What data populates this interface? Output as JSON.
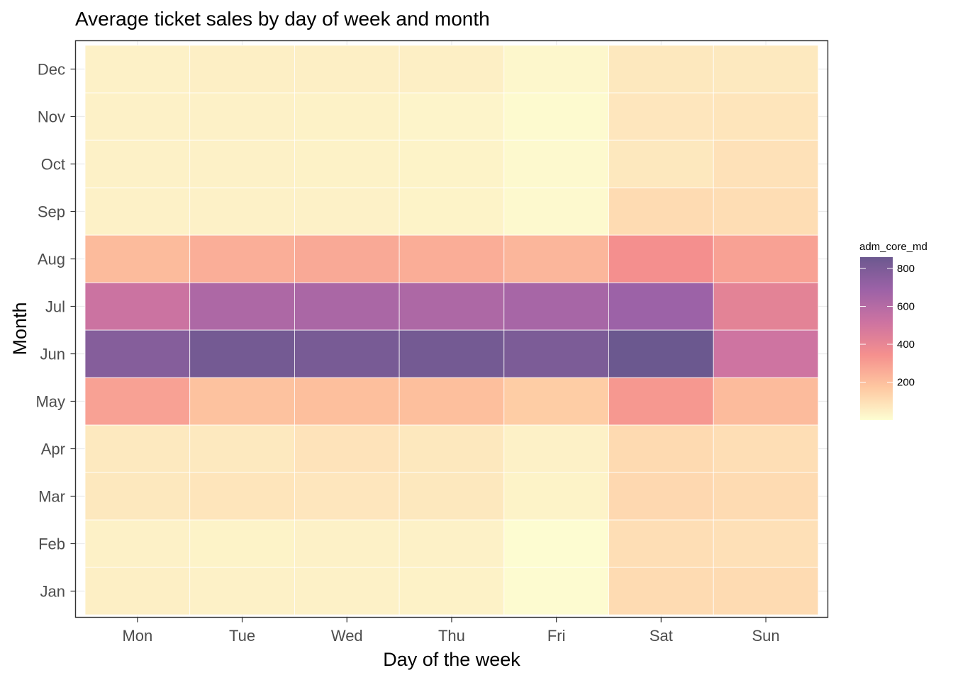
{
  "chart_data": {
    "type": "heatmap",
    "title": "Average ticket sales by day of week and month",
    "xlabel": "Day of the week",
    "ylabel": "Month",
    "x_categories": [
      "Mon",
      "Tue",
      "Wed",
      "Thu",
      "Fri",
      "Sat",
      "Sun"
    ],
    "y_categories": [
      "Jan",
      "Feb",
      "Mar",
      "Apr",
      "May",
      "Jun",
      "Jul",
      "Aug",
      "Sep",
      "Oct",
      "Nov",
      "Dec"
    ],
    "values": [
      [
        45,
        40,
        40,
        38,
        8,
        110,
        110
      ],
      [
        40,
        35,
        40,
        40,
        5,
        100,
        95
      ],
      [
        70,
        80,
        75,
        70,
        35,
        120,
        110
      ],
      [
        65,
        65,
        85,
        70,
        40,
        115,
        100
      ],
      [
        290,
        190,
        200,
        200,
        155,
        320,
        210
      ],
      [
        770,
        830,
        815,
        830,
        800,
        860,
        510
      ],
      [
        520,
        630,
        640,
        630,
        650,
        690,
        420
      ],
      [
        210,
        250,
        265,
        255,
        225,
        350,
        290
      ],
      [
        40,
        40,
        40,
        35,
        15,
        110,
        105
      ],
      [
        40,
        40,
        38,
        35,
        15,
        70,
        90
      ],
      [
        40,
        40,
        38,
        30,
        10,
        75,
        80
      ],
      [
        40,
        45,
        45,
        45,
        20,
        70,
        65
      ]
    ],
    "legend": {
      "title": "adm_core_md",
      "ticks": [
        200,
        400,
        600,
        800
      ],
      "range": [
        0,
        860
      ],
      "position": "right"
    },
    "color_stops": [
      "#fcfdbf",
      "#feb078",
      "#f1605d",
      "#b73779",
      "#721f81",
      "#2c115f"
    ],
    "fill_alpha": 0.7,
    "grid": true
  }
}
